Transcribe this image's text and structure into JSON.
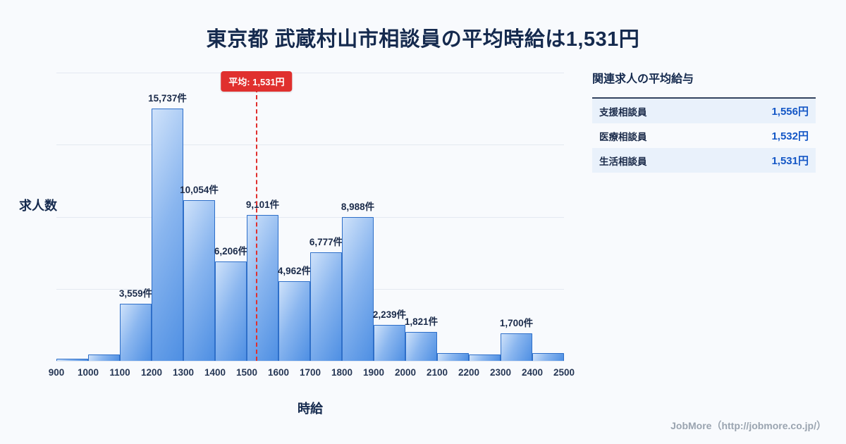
{
  "page": {
    "title": "東京都 武蔵村山市相談員の平均時給は1,531円",
    "footer": "JobMore（http://jobmore.co.jp/）"
  },
  "chart_data": {
    "type": "bar",
    "title": "",
    "xlabel": "時給",
    "ylabel": "求人数",
    "ylim": [
      0,
      18000
    ],
    "grid": true,
    "x_ticks": [
      "900",
      "1000",
      "1100",
      "1200",
      "1300",
      "1400",
      "1500",
      "1600",
      "1700",
      "1800",
      "1900",
      "2000",
      "2100",
      "2200",
      "2300",
      "2400",
      "2500"
    ],
    "bars": [
      {
        "range_start": 900,
        "value": 150,
        "label": ""
      },
      {
        "range_start": 1000,
        "value": 400,
        "label": ""
      },
      {
        "range_start": 1100,
        "value": 3559,
        "label": "3,559件"
      },
      {
        "range_start": 1200,
        "value": 15737,
        "label": "15,737件"
      },
      {
        "range_start": 1300,
        "value": 10054,
        "label": "10,054件"
      },
      {
        "range_start": 1400,
        "value": 6206,
        "label": "6,206件"
      },
      {
        "range_start": 1500,
        "value": 9101,
        "label": "9,101件"
      },
      {
        "range_start": 1600,
        "value": 4962,
        "label": "4,962件"
      },
      {
        "range_start": 1700,
        "value": 6777,
        "label": "6,777件"
      },
      {
        "range_start": 1800,
        "value": 8988,
        "label": "8,988件"
      },
      {
        "range_start": 1900,
        "value": 2239,
        "label": "2,239件"
      },
      {
        "range_start": 2000,
        "value": 1821,
        "label": "1,821件"
      },
      {
        "range_start": 2100,
        "value": 480,
        "label": ""
      },
      {
        "range_start": 2200,
        "value": 380,
        "label": ""
      },
      {
        "range_start": 2300,
        "value": 1700,
        "label": "1,700件"
      },
      {
        "range_start": 2400,
        "value": 480,
        "label": ""
      }
    ],
    "average_line": {
      "value": 1531,
      "label": "平均: 1,531円",
      "color": "#e0302e"
    }
  },
  "side_panel": {
    "title": "関連求人の平均給与",
    "rows": [
      {
        "name": "支援相談員",
        "value": "1,556円"
      },
      {
        "name": "医療相談員",
        "value": "1,532円"
      },
      {
        "name": "生活相談員",
        "value": "1,531円"
      }
    ]
  },
  "colors": {
    "background": "#f8fafd",
    "title_navy": "#152a4e",
    "bar_fill_light": "#cfe2fa",
    "bar_fill_dark": "#4e8fe3",
    "bar_border": "#2e6fc9",
    "accent_blue": "#1457c6",
    "average_red": "#e0302e",
    "row_highlight": "#e9f1fb",
    "footer_gray": "#9aa4b0"
  }
}
